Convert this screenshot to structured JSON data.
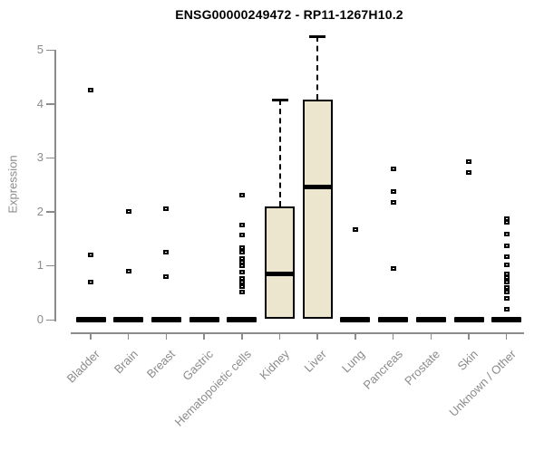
{
  "chart_data": {
    "type": "boxplot",
    "title": "ENSG00000249472 - RP11-1267H10.2",
    "xlabel": "",
    "ylabel": "Expression",
    "ylim": [
      0,
      5
    ],
    "yticks": [
      0,
      1,
      2,
      3,
      4,
      5
    ],
    "grid": false,
    "legend": "none",
    "colors": {
      "box_fill": "#ebe6cd",
      "box_border": "#000000",
      "axis": "#8b8b8b",
      "tick_label": "#8b8b8b",
      "title": "#000000"
    },
    "categories": [
      "Bladder",
      "Brain",
      "Breast",
      "Gastric",
      "Hematopoietic cells",
      "Kidney",
      "Liver",
      "Lung",
      "Pancreas",
      "Prostate",
      "Skin",
      "Unknown / Other"
    ],
    "series": [
      {
        "name": "Bladder",
        "q1": 0,
        "median": 0,
        "q3": 0,
        "whisker_low": 0,
        "whisker_high": 0,
        "points": [
          4.25,
          1.2,
          0.7
        ]
      },
      {
        "name": "Brain",
        "q1": 0,
        "median": 0,
        "q3": 0,
        "whisker_low": 0,
        "whisker_high": 0,
        "points": [
          2.0,
          0.9
        ]
      },
      {
        "name": "Breast",
        "q1": 0,
        "median": 0,
        "q3": 0,
        "whisker_low": 0,
        "whisker_high": 0,
        "points": [
          2.05,
          1.25,
          0.8
        ]
      },
      {
        "name": "Gastric",
        "q1": 0,
        "median": 0,
        "q3": 0,
        "whisker_low": 0,
        "whisker_high": 0,
        "points": []
      },
      {
        "name": "Hematopoietic cells",
        "q1": 0,
        "median": 0,
        "q3": 0,
        "whisker_low": 0,
        "whisker_high": 0,
        "points": [
          2.3,
          1.75,
          1.57,
          1.33,
          1.25,
          1.13,
          1.06,
          1.0,
          0.88,
          0.77,
          0.7,
          0.62,
          0.52
        ]
      },
      {
        "name": "Kidney",
        "q1": 0.02,
        "median": 0.85,
        "q3": 2.1,
        "whisker_low": 0,
        "whisker_high": 4.07,
        "points": []
      },
      {
        "name": "Liver",
        "q1": 0.02,
        "median": 2.45,
        "q3": 4.07,
        "whisker_low": 0,
        "whisker_high": 5.25,
        "points": []
      },
      {
        "name": "Lung",
        "q1": 0,
        "median": 0,
        "q3": 0,
        "whisker_low": 0,
        "whisker_high": 0,
        "points": [
          1.67
        ]
      },
      {
        "name": "Pancreas",
        "q1": 0,
        "median": 0,
        "q3": 0,
        "whisker_low": 0,
        "whisker_high": 0,
        "points": [
          2.8,
          2.38,
          2.18,
          0.95
        ]
      },
      {
        "name": "Prostate",
        "q1": 0,
        "median": 0,
        "q3": 0,
        "whisker_low": 0,
        "whisker_high": 0,
        "points": []
      },
      {
        "name": "Skin",
        "q1": 0,
        "median": 0,
        "q3": 0,
        "whisker_low": 0,
        "whisker_high": 0,
        "points": [
          2.92,
          2.73
        ]
      },
      {
        "name": "Unknown / Other",
        "q1": 0,
        "median": 0,
        "q3": 0,
        "whisker_low": 0,
        "whisker_high": 0,
        "points": [
          1.87,
          1.8,
          1.58,
          1.37,
          1.17,
          1.02,
          0.85,
          0.78,
          0.7,
          0.6,
          0.52,
          0.4,
          0.2
        ]
      }
    ]
  }
}
